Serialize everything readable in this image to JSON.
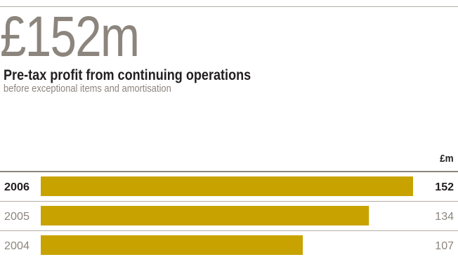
{
  "headline": "£152m",
  "subtitle": "Pre-tax profit from continuing operations",
  "caption": "before exceptional items and amortisation",
  "chart_data": {
    "type": "bar",
    "orientation": "horizontal",
    "unit": "£m",
    "categories": [
      "2006",
      "2005",
      "2004"
    ],
    "values": [
      152,
      134,
      107
    ],
    "highlight": "2006",
    "bar_color": "#c8a300",
    "xlim": [
      0,
      152
    ]
  }
}
